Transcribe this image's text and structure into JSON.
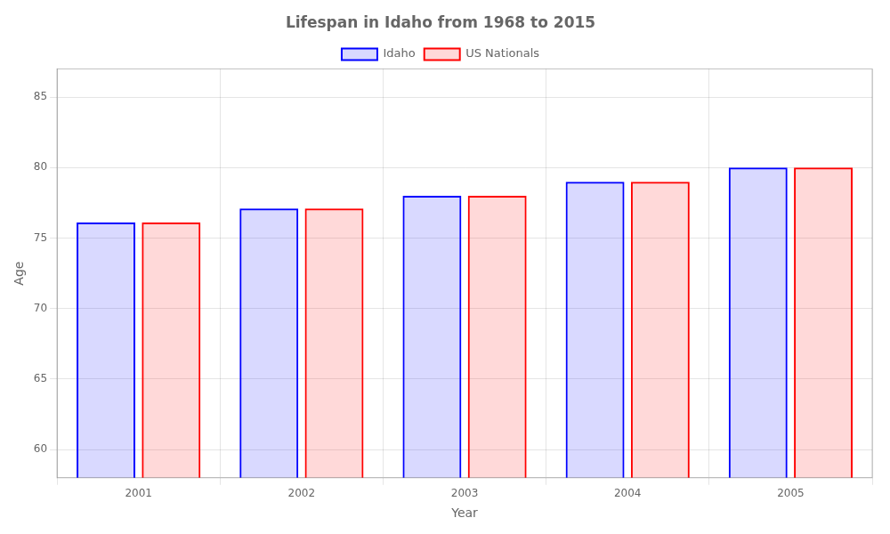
{
  "chart_data": {
    "type": "bar",
    "title": "Lifespan in Idaho from 1968 to 2015",
    "xlabel": "Year",
    "ylabel": "Age",
    "categories": [
      "2001",
      "2002",
      "2003",
      "2004",
      "2005"
    ],
    "series": [
      {
        "name": "Idaho",
        "color": "#0000ff",
        "values": [
          76.1,
          77.1,
          78.0,
          79.0,
          80.0
        ]
      },
      {
        "name": "US Nationals",
        "color": "#ff0000",
        "values": [
          76.1,
          77.1,
          78.0,
          79.0,
          80.0
        ]
      }
    ],
    "ylim": [
      58,
      87
    ],
    "yticks": [
      60,
      65,
      70,
      75,
      80,
      85
    ],
    "grid": true,
    "legend": "top"
  }
}
